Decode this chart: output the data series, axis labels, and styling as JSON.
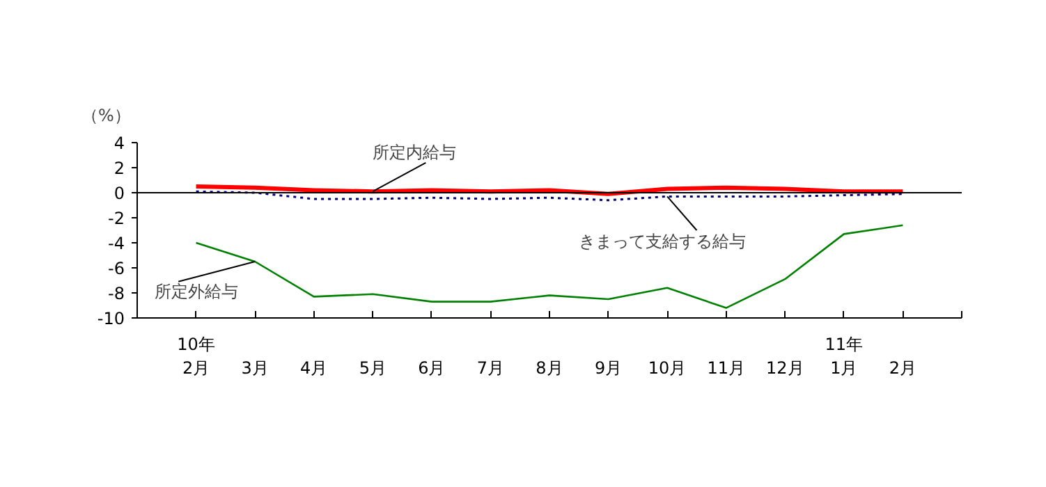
{
  "chart_data": {
    "type": "line",
    "ylabel": "（%）",
    "categories": [
      "10年\n2月",
      "3月",
      "4月",
      "5月",
      "6月",
      "7月",
      "8月",
      "9月",
      "10月",
      "11月",
      "12月",
      "11年\n1月",
      "2月"
    ],
    "series": [
      {
        "color": "#ff0000",
        "values": [
          0.5,
          0.4,
          0.2,
          0.1,
          0.2,
          0.1,
          0.2,
          -0.1,
          0.3,
          0.4,
          0.3,
          0.1,
          0.1
        ],
        "line_style": "solid"
      },
      {
        "color": "#000080",
        "values": [
          0.1,
          0.0,
          -0.5,
          -0.5,
          -0.4,
          -0.5,
          -0.4,
          -0.6,
          -0.3,
          -0.3,
          -0.3,
          -0.2,
          -0.1
        ],
        "line_style": "dotted"
      },
      {
        "color": "#008000",
        "values": [
          -4.0,
          -5.5,
          -8.3,
          -8.1,
          -8.7,
          -8.7,
          -8.2,
          -8.5,
          -7.6,
          -9.2,
          -6.9,
          -3.3,
          -2.6
        ],
        "line_style": "solid"
      }
    ],
    "ylim": [
      -10,
      4
    ],
    "yticks": [
      4,
      2,
      0,
      -2,
      -4,
      -6,
      -8,
      -10
    ],
    "ref_lines": [
      {
        "axis": "y",
        "value": 0,
        "color": "#000000"
      }
    ],
    "annotations": [
      {
        "text": "所定内給与",
        "x": "5月",
        "y": 0.1
      },
      {
        "text": "きまって支給する給与",
        "x": "10月",
        "y": -0.3
      },
      {
        "text": "所定外給与",
        "x": "3月",
        "y": -5.5
      }
    ],
    "grid": false
  }
}
